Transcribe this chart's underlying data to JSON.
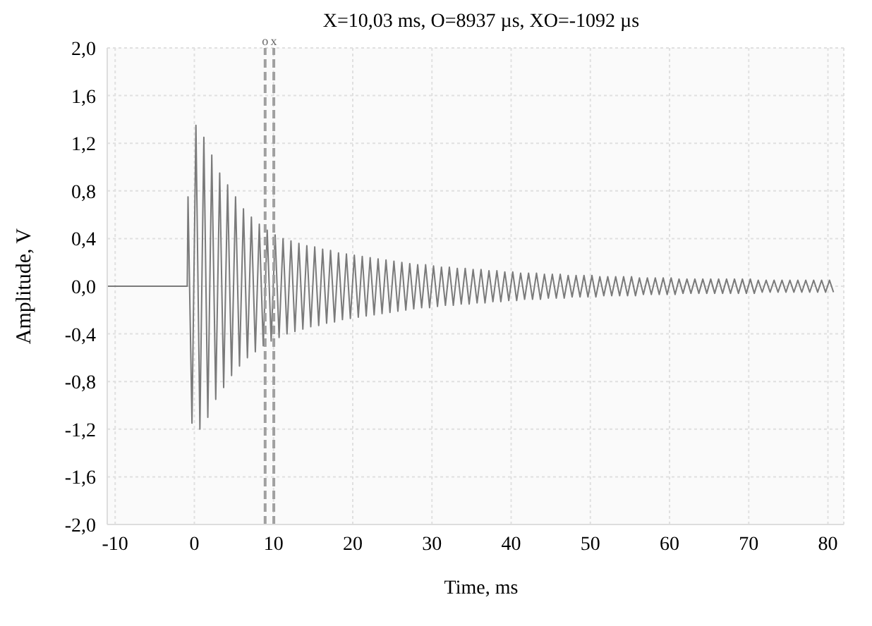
{
  "chart_data": {
    "type": "line",
    "title": "X=10,03 ms, O=8937 µs, XO=-1092 µs",
    "xlabel": "Time, ms",
    "ylabel": "Amplitude, V",
    "xlim": [
      -11,
      82
    ],
    "xticks": [
      -10,
      0,
      10,
      20,
      30,
      40,
      50,
      60,
      70,
      80
    ],
    "ylim": [
      -2,
      2
    ],
    "yticks": [
      {
        "value": -2,
        "label": "-2,0"
      },
      {
        "value": -1.6,
        "label": "-1,6"
      },
      {
        "value": -1.2,
        "label": "-1,2"
      },
      {
        "value": -0.8,
        "label": "-0,8"
      },
      {
        "value": -0.4,
        "label": "-0,4"
      },
      {
        "value": 0,
        "label": "0,0"
      },
      {
        "value": 0.4,
        "label": "0,4"
      },
      {
        "value": 0.8,
        "label": "0,8"
      },
      {
        "value": 1.2,
        "label": "1,2"
      },
      {
        "value": 1.6,
        "label": "1,6"
      },
      {
        "value": 2,
        "label": "2,0"
      }
    ],
    "grid": true,
    "marker": "none",
    "line_style": "solid",
    "ref_lines": [
      {
        "axis": "x",
        "value": 8.937,
        "label": "o",
        "color": "#a0a0a0",
        "line_style": "dashed"
      },
      {
        "axis": "x",
        "value": 10.03,
        "label": "x",
        "color": "#a0a0a0",
        "line_style": "dashed"
      }
    ],
    "series": [
      {
        "color": "#7a7a7a",
        "x": [
          -11,
          -0.9,
          -0.8,
          -0.3,
          0.2,
          0.7,
          1.2,
          1.7,
          2.2,
          2.7,
          3.2,
          3.7,
          4.2,
          4.7,
          5.2,
          5.7,
          6.2,
          6.7,
          7.2,
          7.7,
          8.2,
          8.7,
          9.2,
          9.7,
          10.2,
          10.7,
          11.2,
          11.7,
          12.2,
          12.7,
          13.2,
          13.7,
          14.2,
          14.7,
          15.2,
          15.7,
          16.2,
          16.7,
          17.2,
          17.7,
          18.2,
          18.7,
          19.2,
          19.7,
          20.2,
          20.7,
          21.2,
          21.7,
          22.2,
          22.7,
          23.2,
          23.7,
          24.2,
          24.7,
          25.2,
          25.7,
          26.2,
          26.7,
          27.2,
          27.7,
          28.2,
          28.7,
          29.2,
          29.7,
          30.2,
          30.7,
          31.2,
          31.7,
          32.2,
          32.7,
          33.2,
          33.7,
          34.2,
          34.7,
          35.2,
          35.7,
          36.2,
          36.7,
          37.2,
          37.7,
          38.2,
          38.7,
          39.2,
          39.7,
          40.2,
          40.7,
          41.2,
          41.7,
          42.2,
          42.7,
          43.2,
          43.7,
          44.2,
          44.7,
          45.2,
          45.7,
          46.2,
          46.7,
          47.2,
          47.7,
          48.2,
          48.7,
          49.2,
          49.7,
          50.2,
          50.7,
          51.2,
          51.7,
          52.2,
          52.7,
          53.2,
          53.7,
          54.2,
          54.7,
          55.2,
          55.7,
          56.2,
          56.7,
          57.2,
          57.7,
          58.2,
          58.7,
          59.2,
          59.7,
          60.2,
          60.7,
          61.2,
          61.7,
          62.2,
          62.7,
          63.2,
          63.7,
          64.2,
          64.7,
          65.2,
          65.7,
          66.2,
          66.7,
          67.2,
          67.7,
          68.2,
          68.7,
          69.2,
          69.7,
          70.2,
          70.7,
          71.2,
          71.7,
          72.2,
          72.7,
          73.2,
          73.7,
          74.2,
          74.7,
          75.2,
          75.7,
          76.2,
          76.7,
          77.2,
          77.7,
          78.2,
          78.7,
          79.2,
          79.7,
          80.2,
          80.7
        ],
        "values": [
          0,
          0,
          0.75,
          -1.15,
          1.35,
          -1.2,
          1.25,
          -1.1,
          1.1,
          -0.95,
          0.95,
          -0.85,
          0.85,
          -0.75,
          0.75,
          -0.67,
          0.65,
          -0.6,
          0.58,
          -0.55,
          0.52,
          -0.5,
          0.47,
          -0.46,
          0.43,
          -0.43,
          0.4,
          -0.4,
          0.38,
          -0.38,
          0.36,
          -0.36,
          0.34,
          -0.34,
          0.33,
          -0.33,
          0.31,
          -0.31,
          0.3,
          -0.3,
          0.28,
          -0.28,
          0.27,
          -0.27,
          0.26,
          -0.26,
          0.25,
          -0.25,
          0.24,
          -0.24,
          0.23,
          -0.23,
          0.22,
          -0.22,
          0.21,
          -0.21,
          0.2,
          -0.2,
          0.19,
          -0.19,
          0.18,
          -0.18,
          0.18,
          -0.18,
          0.17,
          -0.17,
          0.16,
          -0.16,
          0.16,
          -0.16,
          0.15,
          -0.15,
          0.15,
          -0.15,
          0.14,
          -0.14,
          0.14,
          -0.14,
          0.13,
          -0.13,
          0.13,
          -0.13,
          0.12,
          -0.12,
          0.12,
          -0.12,
          0.11,
          -0.11,
          0.11,
          -0.11,
          0.11,
          -0.11,
          0.1,
          -0.1,
          0.1,
          -0.1,
          0.1,
          -0.1,
          0.09,
          -0.09,
          0.09,
          -0.09,
          0.09,
          -0.09,
          0.09,
          -0.09,
          0.08,
          -0.08,
          0.08,
          -0.08,
          0.08,
          -0.08,
          0.08,
          -0.08,
          0.08,
          -0.08,
          0.07,
          -0.07,
          0.07,
          -0.07,
          0.07,
          -0.07,
          0.07,
          -0.07,
          0.07,
          -0.07,
          0.06,
          -0.06,
          0.06,
          -0.06,
          0.06,
          -0.06,
          0.06,
          -0.06,
          0.06,
          -0.06,
          0.06,
          -0.06,
          0.06,
          -0.06,
          0.06,
          -0.06,
          0.06,
          -0.06,
          0.06,
          -0.06,
          0.05,
          -0.05,
          0.05,
          -0.05,
          0.05,
          -0.05,
          0.05,
          -0.05,
          0.05,
          -0.05,
          0.05,
          -0.05,
          0.05,
          -0.05,
          0.05,
          -0.05,
          0.05,
          -0.05,
          0.05,
          -0.05
        ]
      }
    ]
  }
}
